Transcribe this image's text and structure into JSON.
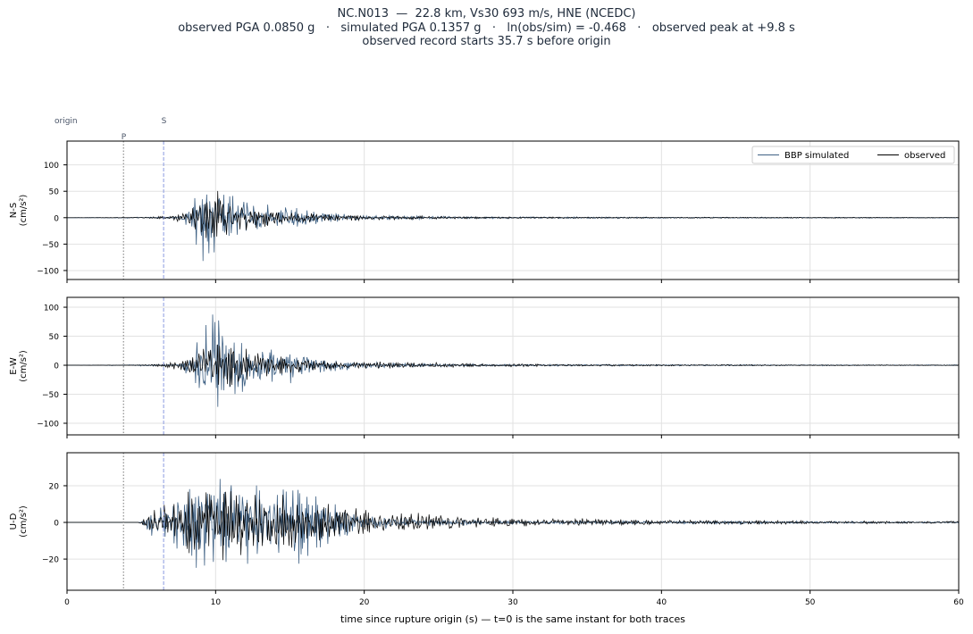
{
  "header": {
    "line1": "NC.N013  —  22.8 km, Vs30 693 m/s, HNE (NCEDC)",
    "line2": "observed PGA 0.0850 g   ·   simulated PGA 0.1357 g   ·   ln(obs/sim) = -0.468   ·   observed peak at +9.8 s",
    "line3": "observed record starts 35.7 s before origin"
  },
  "markers": {
    "origin": "origin",
    "p": "P",
    "s": "S",
    "p_time": 3.8,
    "s_time": 6.5
  },
  "legend": {
    "simulated": "BBP simulated",
    "observed": "observed"
  },
  "colors": {
    "simulated": "#3f6184",
    "observed": "#000000",
    "p_line": "#777777",
    "s_line": "#8a9ae0",
    "grid": "#e2e2e2"
  },
  "xlabel": "time since rupture origin (s)   —   t=0 is the same instant for both traces",
  "chart_data": [
    {
      "type": "line",
      "component": "N-S",
      "ylabel_line1": "N-S",
      "ylabel_line2": "(cm/s²)",
      "xlim": [
        0,
        60
      ],
      "ylim": [
        -117,
        145
      ],
      "xticks": [
        0,
        10,
        20,
        30,
        40,
        50,
        60
      ],
      "yticks": [
        -100,
        -50,
        0,
        50,
        100
      ],
      "series": [
        {
          "name": "BBP simulated",
          "x": [
            0,
            7.5,
            8.2,
            8.6,
            9.2,
            9.8,
            10.4,
            11.2,
            12.0,
            13.5,
            15.0,
            17.0,
            20.0,
            25.0,
            30.0,
            40.0,
            50.0,
            60.0
          ],
          "envelope": [
            0,
            2,
            20,
            55,
            100,
            115,
            70,
            60,
            45,
            30,
            22,
            12,
            5,
            3,
            2,
            1.5,
            1,
            1
          ]
        },
        {
          "name": "observed",
          "x": [
            0,
            5.0,
            6.0,
            7.0,
            8.0,
            9.0,
            9.8,
            11.0,
            12.5,
            14.0,
            16.0,
            18.0,
            21.0,
            25.0,
            30.0,
            40.0,
            50.0,
            60.0
          ],
          "envelope": [
            0,
            0.5,
            3,
            6,
            15,
            40,
            75,
            40,
            30,
            18,
            10,
            8,
            5,
            3,
            2,
            1,
            1,
            0.5
          ]
        }
      ]
    },
    {
      "type": "line",
      "component": "E-W",
      "ylabel_line1": "E-W",
      "ylabel_line2": "(cm/s²)",
      "xlim": [
        0,
        60
      ],
      "ylim": [
        -120,
        117
      ],
      "xticks": [
        0,
        10,
        20,
        30,
        40,
        50,
        60
      ],
      "yticks": [
        -100,
        -50,
        0,
        50,
        100
      ],
      "series": [
        {
          "name": "BBP simulated",
          "x": [
            0,
            7.5,
            8.0,
            8.8,
            9.5,
            10.0,
            10.6,
            12.0,
            13.5,
            15.0,
            17.0,
            20.0,
            25.0,
            30.0,
            40.0,
            50.0,
            60.0
          ],
          "envelope": [
            0,
            2,
            20,
            55,
            80,
            100,
            75,
            55,
            40,
            30,
            15,
            6,
            3,
            2,
            1.5,
            1,
            1
          ]
        },
        {
          "name": "observed",
          "x": [
            0,
            5.0,
            6.0,
            7.0,
            8.0,
            9.0,
            10.0,
            11.0,
            12.5,
            14.0,
            16.0,
            18.0,
            21.0,
            24.0,
            30.0,
            40.0,
            50.0,
            60.0
          ],
          "envelope": [
            0,
            0.5,
            3,
            6,
            14,
            30,
            55,
            40,
            30,
            20,
            12,
            9,
            7,
            5,
            3,
            1.5,
            1,
            0.5
          ]
        }
      ]
    },
    {
      "type": "line",
      "component": "U-D",
      "ylabel_line1": "U-D",
      "ylabel_line2": "(cm/s²)",
      "xlim": [
        0,
        60
      ],
      "ylim": [
        -37,
        38
      ],
      "xticks": [
        0,
        10,
        20,
        30,
        40,
        50,
        60
      ],
      "yticks": [
        -20,
        0,
        20
      ],
      "series": [
        {
          "name": "BBP simulated",
          "x": [
            0,
            5.0,
            5.6,
            6.5,
            8.0,
            9.0,
            10.0,
            12.0,
            14.0,
            16.0,
            18.0,
            20.0,
            22.0,
            25.0,
            30.0,
            40.0,
            50.0,
            60.0
          ],
          "envelope": [
            0,
            0,
            8,
            10,
            22,
            28,
            30,
            28,
            25,
            22,
            12,
            5,
            3,
            2,
            1,
            1,
            0.8,
            0.5
          ]
        },
        {
          "name": "observed",
          "x": [
            0,
            4.8,
            5.5,
            6.5,
            8.0,
            9.5,
            10.5,
            12.0,
            14.0,
            16.0,
            18.0,
            20.0,
            22.0,
            25.0,
            30.0,
            40.0,
            50.0,
            60.0
          ],
          "envelope": [
            0,
            0,
            6,
            12,
            18,
            28,
            25,
            22,
            20,
            15,
            12,
            8,
            7,
            5,
            3,
            1.5,
            1,
            0.8
          ]
        }
      ]
    }
  ]
}
